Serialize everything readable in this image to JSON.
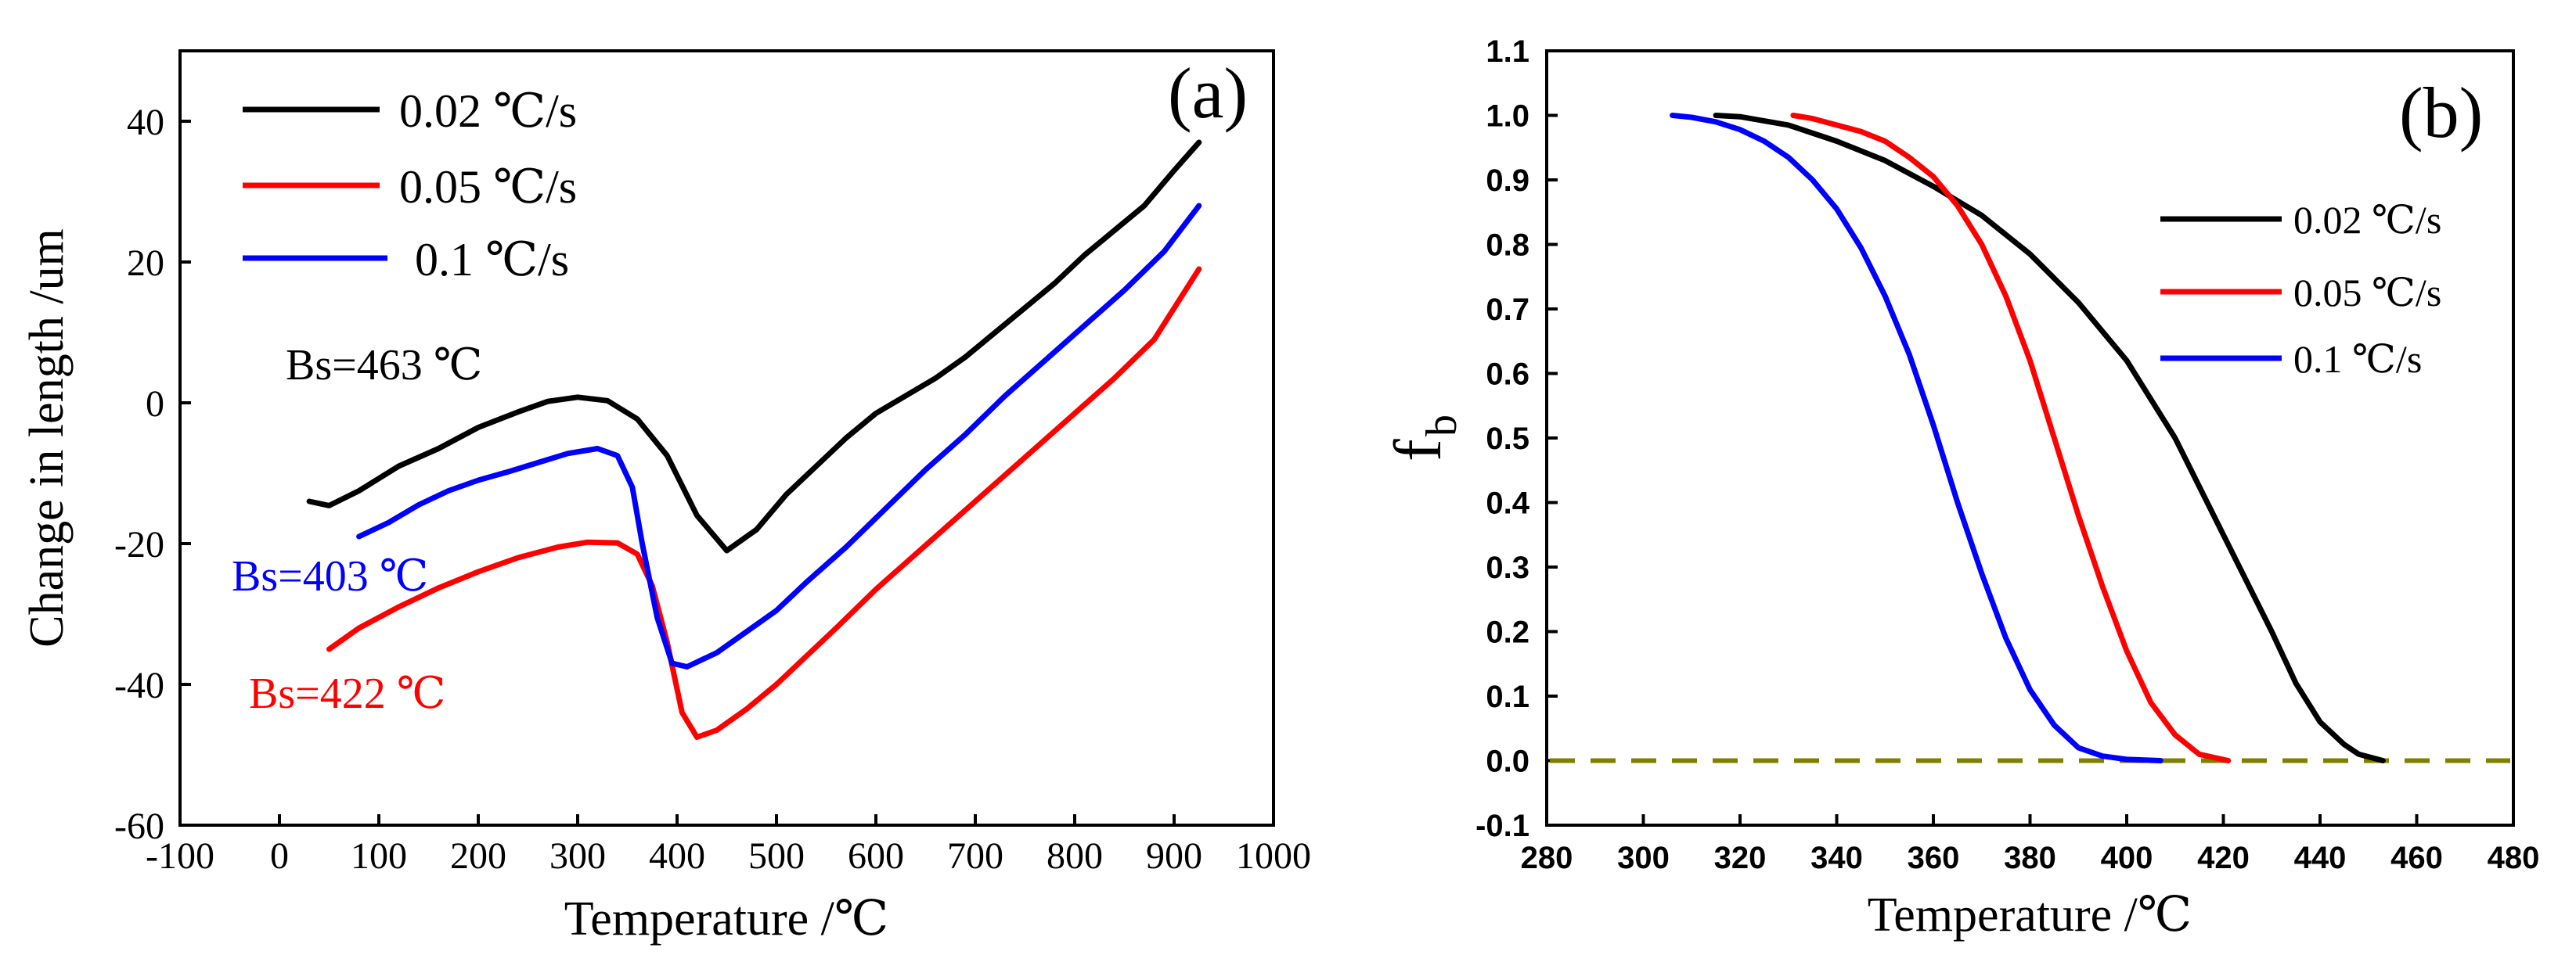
{
  "chart_data": [
    {
      "type": "line",
      "panel_label": "(a)",
      "xlabel": "Temperature /℃",
      "ylabel": "Change in length /um",
      "xlim": [
        -100,
        1000
      ],
      "ylim": [
        -60,
        50
      ],
      "xticks": [
        "-100",
        "0",
        "100",
        "200",
        "300",
        "400",
        "500",
        "600",
        "700",
        "800",
        "900",
        "1000"
      ],
      "yticks": [
        "-60",
        "-40",
        "-20",
        "0",
        "20",
        "40"
      ],
      "legend_position": "top-left",
      "series": [
        {
          "name": "0.02 ℃/s",
          "color": "#000000",
          "x": [
            30,
            50,
            80,
            120,
            160,
            200,
            240,
            270,
            300,
            330,
            360,
            390,
            420,
            450,
            480,
            510,
            540,
            570,
            600,
            630,
            660,
            690,
            720,
            750,
            780,
            810,
            840,
            870,
            900,
            925
          ],
          "y": [
            -14,
            -14.6,
            -12.5,
            -9,
            -6.5,
            -3.5,
            -1.3,
            0.2,
            0.8,
            0.3,
            -2.3,
            -7.5,
            -16,
            -21,
            -18,
            -13,
            -9,
            -5,
            -1.5,
            1,
            3.5,
            6.5,
            10,
            13.5,
            17,
            21,
            24.5,
            28,
            33,
            37
          ]
        },
        {
          "name": "0.05 ℃/s",
          "color": "#ff0000",
          "x": [
            50,
            80,
            120,
            160,
            200,
            240,
            280,
            310,
            340,
            360,
            375,
            390,
            405,
            420,
            440,
            470,
            500,
            530,
            560,
            600,
            640,
            680,
            720,
            760,
            800,
            840,
            880,
            925
          ],
          "y": [
            -35,
            -32,
            -29,
            -26.3,
            -24,
            -22,
            -20.5,
            -19.8,
            -19.9,
            -21.5,
            -26,
            -34,
            -44,
            -47.5,
            -46.5,
            -43.5,
            -40,
            -36,
            -32,
            -26.5,
            -21.5,
            -16.5,
            -11.5,
            -6.5,
            -1.5,
            3.5,
            9,
            19
          ]
        },
        {
          "name": "0.1 ℃/s",
          "color": "#0000ff",
          "x": [
            80,
            110,
            140,
            170,
            200,
            230,
            260,
            290,
            320,
            340,
            355,
            365,
            380,
            395,
            410,
            440,
            470,
            500,
            530,
            570,
            610,
            650,
            690,
            730,
            770,
            810,
            850,
            890,
            925
          ],
          "y": [
            -19,
            -17,
            -14.5,
            -12.5,
            -11,
            -9.8,
            -8.5,
            -7.2,
            -6.5,
            -7.5,
            -12,
            -20,
            -30.5,
            -37,
            -37.5,
            -35.5,
            -32.5,
            -29.5,
            -25.5,
            -20.5,
            -15,
            -9.5,
            -4.5,
            1,
            6,
            11,
            16,
            21.5,
            28
          ]
        }
      ],
      "annotations": [
        {
          "text": "Bs=463 ℃",
          "color": "#000000"
        },
        {
          "text": "Bs=403 ℃",
          "color": "#0000ff"
        },
        {
          "text": "Bs=422 ℃",
          "color": "#ff0000"
        }
      ]
    },
    {
      "type": "line",
      "panel_label": "(b)",
      "xlabel": "Temperature /℃",
      "ylabel_main": "f",
      "ylabel_sub": "b",
      "xlim": [
        280,
        480
      ],
      "ylim": [
        -0.1,
        1.1
      ],
      "xticks": [
        "280",
        "300",
        "320",
        "340",
        "360",
        "380",
        "400",
        "420",
        "440",
        "460",
        "480"
      ],
      "yticks": [
        "-0.1",
        "0.0",
        "0.1",
        "0.2",
        "0.3",
        "0.4",
        "0.5",
        "0.6",
        "0.7",
        "0.8",
        "0.9",
        "1.0",
        "1.1"
      ],
      "legend_position": "top-right",
      "baseline": {
        "y": 0,
        "color": "#808000",
        "style": "dashed"
      },
      "series": [
        {
          "name": "0.02 ℃/s",
          "color": "#000000",
          "x": [
            315,
            320,
            330,
            340,
            350,
            360,
            370,
            380,
            390,
            400,
            410,
            420,
            430,
            435,
            440,
            445,
            448,
            453
          ],
          "y": [
            1.0,
            0.998,
            0.985,
            0.96,
            0.93,
            0.89,
            0.845,
            0.785,
            0.71,
            0.62,
            0.5,
            0.35,
            0.2,
            0.12,
            0.06,
            0.025,
            0.01,
            0.0
          ]
        },
        {
          "name": "0.05 ℃/s",
          "color": "#ff0000",
          "x": [
            331,
            335,
            340,
            345,
            350,
            355,
            360,
            365,
            370,
            375,
            380,
            385,
            390,
            395,
            400,
            405,
            410,
            415,
            421
          ],
          "y": [
            1.0,
            0.995,
            0.985,
            0.975,
            0.96,
            0.935,
            0.905,
            0.86,
            0.8,
            0.72,
            0.62,
            0.5,
            0.38,
            0.27,
            0.17,
            0.09,
            0.04,
            0.01,
            0.0
          ]
        },
        {
          "name": "0.1 ℃/s",
          "color": "#0000ff",
          "x": [
            306,
            310,
            315,
            320,
            325,
            330,
            335,
            340,
            345,
            350,
            355,
            360,
            365,
            370,
            375,
            380,
            385,
            390,
            395,
            400,
            407
          ],
          "y": [
            1.0,
            0.997,
            0.99,
            0.978,
            0.96,
            0.935,
            0.9,
            0.855,
            0.795,
            0.72,
            0.63,
            0.52,
            0.4,
            0.29,
            0.19,
            0.11,
            0.055,
            0.02,
            0.007,
            0.002,
            0.0
          ]
        }
      ]
    }
  ]
}
